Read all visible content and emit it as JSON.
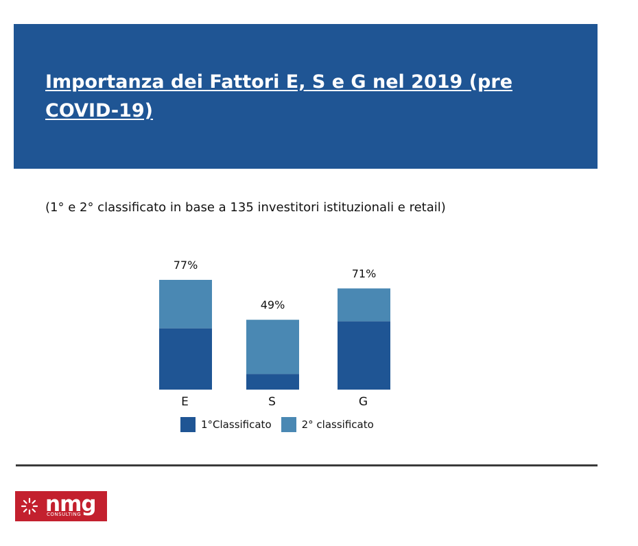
{
  "header": {
    "title": "Importanza dei Fattori E, S e G nel 2019 (pre COVID-19)"
  },
  "subtitle": "(1° e 2° classificato in base a 135 investitori istituzionali e retail)",
  "colors": {
    "banner": "#1f5594",
    "first": "#1f5594",
    "second": "#4a88b3",
    "logo": "#c3202e"
  },
  "chart_data": {
    "type": "bar",
    "stacked": true,
    "categories": [
      "E",
      "S",
      "G"
    ],
    "series": [
      {
        "name": "1°Classificato",
        "values": [
          43,
          11,
          48
        ]
      },
      {
        "name": "2° classificato",
        "values": [
          34,
          38,
          23
        ]
      }
    ],
    "totals": [
      "77%",
      "49%",
      "71%"
    ],
    "ylim": [
      0,
      80
    ],
    "legend_position": "bottom",
    "grid": false
  },
  "legend": {
    "first_label": "1°Classificato",
    "second_label": "2° classificato"
  },
  "logo": {
    "text": "nmg",
    "sub": "CONSULTING",
    "icon": "sunburst-icon"
  }
}
